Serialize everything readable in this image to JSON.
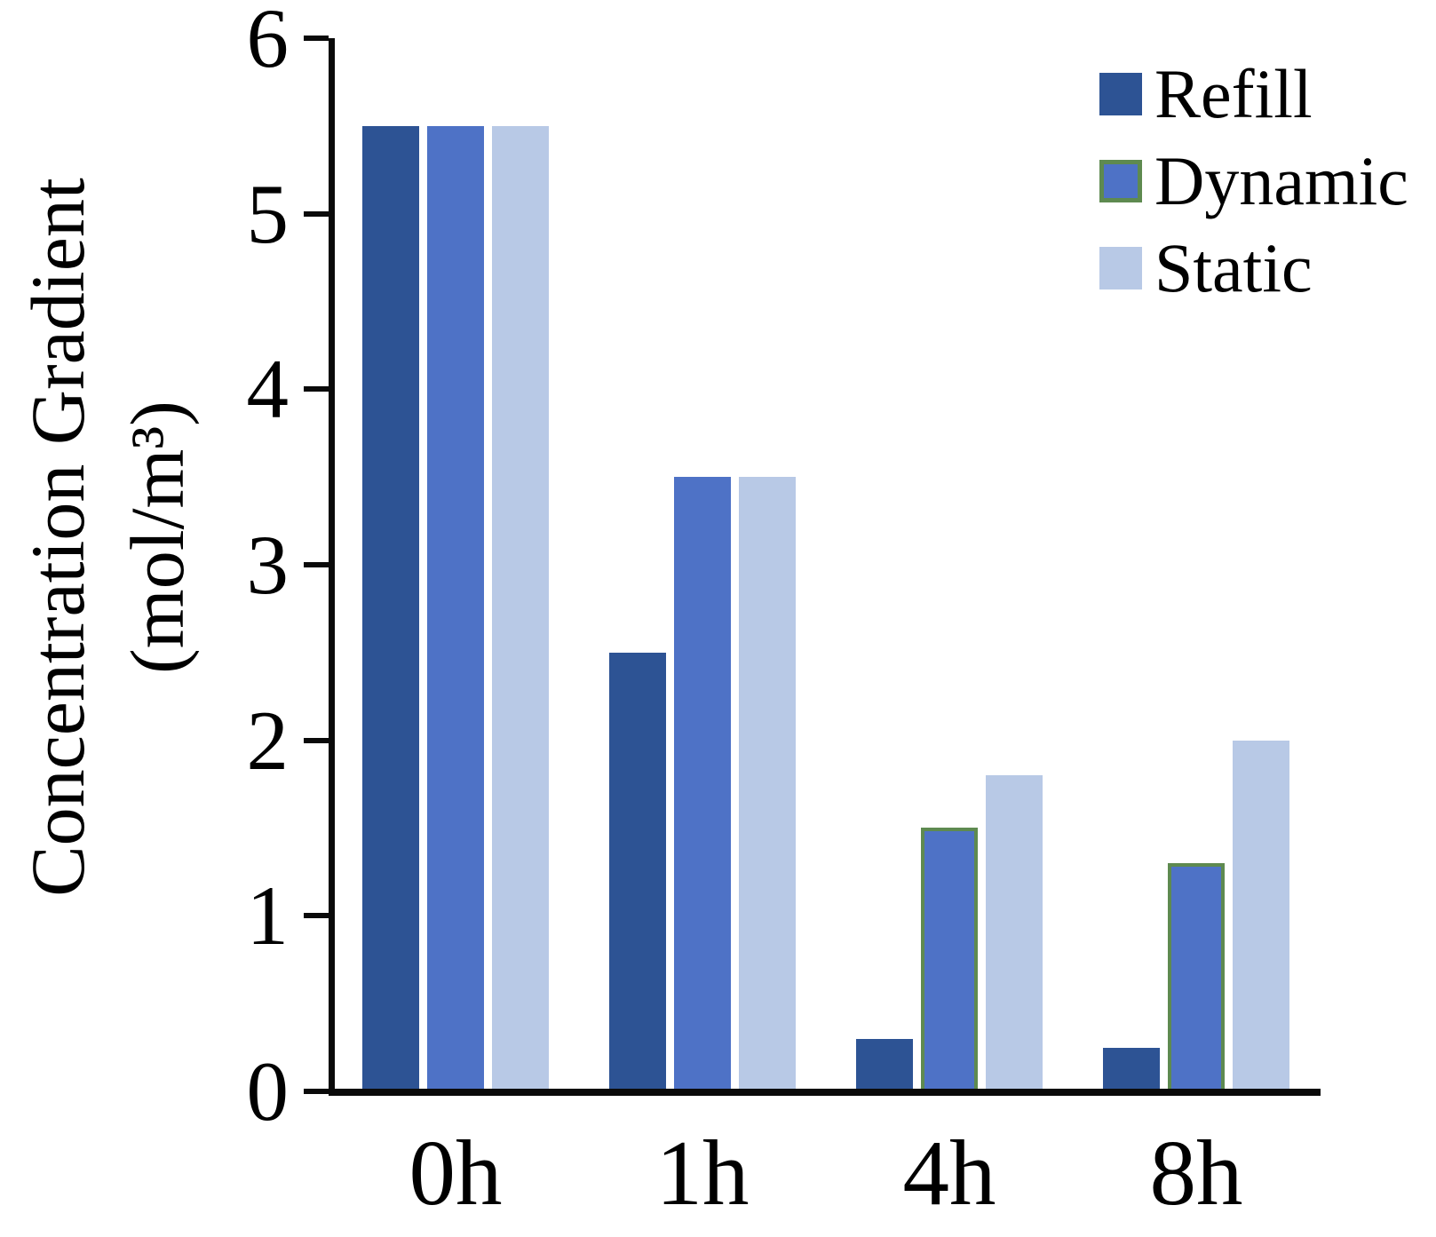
{
  "chart_data": {
    "type": "bar",
    "title": "",
    "categories": [
      "0h",
      "1h",
      "4h",
      "8h"
    ],
    "series": [
      {
        "name": "Refill",
        "color": "#2d5394",
        "values": [
          5.5,
          2.5,
          0.3,
          0.25
        ]
      },
      {
        "name": "Dynamic",
        "color": "#4e72c6",
        "outline_color": "#5e8a50",
        "outlined_bars": [
          false,
          false,
          true,
          true
        ],
        "values": [
          5.5,
          3.5,
          1.5,
          1.3
        ]
      },
      {
        "name": "Static",
        "color": "#b8c9e6",
        "values": [
          5.5,
          3.5,
          1.8,
          2.0
        ]
      }
    ],
    "ylabel_line1": "Concentration Gradient",
    "ylabel_line2": "(mol/m³)",
    "yticks": [
      "0",
      "1",
      "2",
      "3",
      "4",
      "5",
      "6"
    ],
    "ylim": [
      0,
      6
    ],
    "xlabel": "",
    "grid": false,
    "legend_position": "top-right",
    "axis_color": "#0a0a0a",
    "background": "#ffffff",
    "text_color": "#000000"
  }
}
